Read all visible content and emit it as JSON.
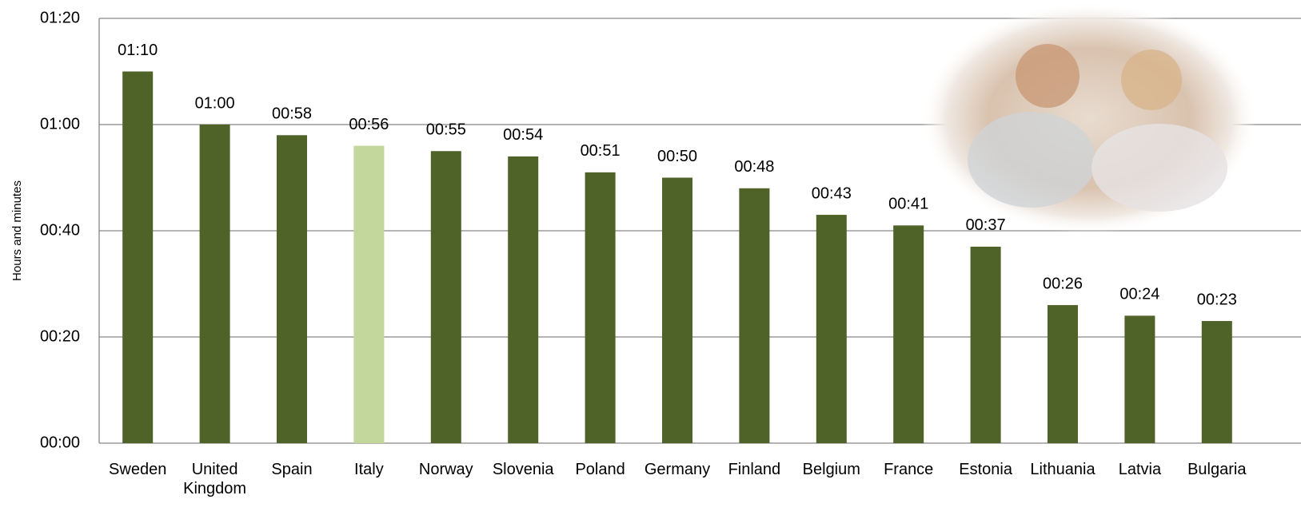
{
  "chart_data": {
    "type": "bar",
    "y_label": "Hours and minutes",
    "categories": [
      "Sweden",
      "United Kingdom",
      "Spain",
      "Italy",
      "Norway",
      "Slovenia",
      "Poland",
      "Germany",
      "Finland",
      "Belgium",
      "France",
      "Estonia",
      "Lithuania",
      "Latvia",
      "Bulgaria"
    ],
    "values": [
      70,
      60,
      58,
      56,
      55,
      54,
      51,
      50,
      48,
      43,
      41,
      37,
      26,
      24,
      23
    ],
    "value_labels": [
      "01:10",
      "01:00",
      "00:58",
      "00:56",
      "00:55",
      "00:54",
      "00:51",
      "00:50",
      "00:48",
      "00:43",
      "00:41",
      "00:37",
      "00:26",
      "00:24",
      "00:23"
    ],
    "colors": [
      "#4f6228",
      "#4f6228",
      "#4f6228",
      "#c3d69b",
      "#4f6228",
      "#4f6228",
      "#4f6228",
      "#4f6228",
      "#4f6228",
      "#4f6228",
      "#4f6228",
      "#4f6228",
      "#4f6228",
      "#4f6228",
      "#4f6228"
    ],
    "ylim": [
      0,
      80
    ],
    "yticks": [
      {
        "value": 0,
        "label": "00:00"
      },
      {
        "value": 20,
        "label": "00:20"
      },
      {
        "value": 40,
        "label": "00:40"
      },
      {
        "value": 60,
        "label": "01:00"
      },
      {
        "value": 80,
        "label": "01:20"
      }
    ],
    "grid": true
  }
}
